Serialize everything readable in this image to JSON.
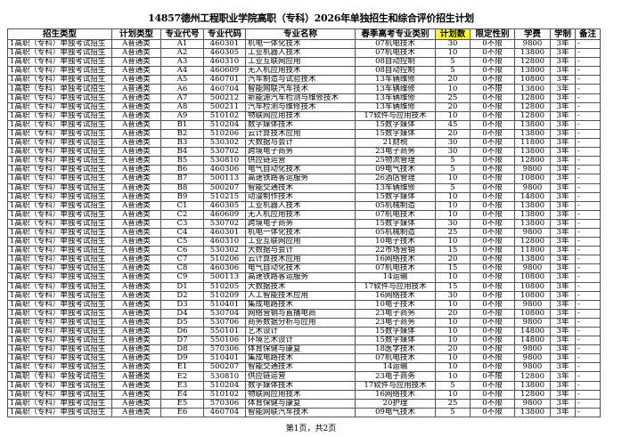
{
  "title": "14857德州工程职业学院高职（专科）2026年单独招生和综合评价招生计划",
  "headers": [
    "招生类型",
    "计划类型",
    "专业代号",
    "专业代码",
    "专业名称",
    "春季高考专业类别",
    "计划数",
    "限定性别",
    "学费",
    "学制",
    "备注"
  ],
  "highlight_color": "#ffff00",
  "rows": [
    [
      "1高职（专科）单独考试招生",
      "A普通类",
      "A1",
      "460301",
      "机电一体化技术",
      "07机电技术",
      "30",
      "0不限",
      "9800",
      "3年",
      "-"
    ],
    [
      "1高职（专科）单独考试招生",
      "A普通类",
      "A2",
      "460305",
      "工业机器人技术",
      "07机电技术",
      "10",
      "0不限",
      "13800",
      "3年",
      "-"
    ],
    [
      "1高职（专科）单独考试招生",
      "A普通类",
      "A3",
      "460310",
      "工业互联网应用",
      "08自动控制",
      "5",
      "0不限",
      "12800",
      "3年",
      "-"
    ],
    [
      "1高职（专科）单独考试招生",
      "A普通类",
      "A4",
      "460609",
      "无人机应用技术",
      "08自动控制",
      "5",
      "0不限",
      "13800",
      "3年",
      "-"
    ],
    [
      "1高职（专科）单独考试招生",
      "A普通类",
      "A5",
      "460701",
      "汽车制造与试验技术",
      "13车辆维修",
      "20",
      "0不限",
      "10800",
      "3年",
      "-"
    ],
    [
      "1高职（专科）单独考试招生",
      "A普通类",
      "A6",
      "460704",
      "智能网联汽车技术",
      "13车辆维修",
      "10",
      "0不限",
      "13800",
      "3年",
      "-"
    ],
    [
      "1高职（专科）单独考试招生",
      "A普通类",
      "A7",
      "500212",
      "新能源汽车检测与维修技术",
      "13车辆维修",
      "25",
      "0不限",
      "12800",
      "3年",
      "-"
    ],
    [
      "1高职（专科）单独考试招生",
      "A普通类",
      "A8",
      "500211",
      "汽车检测与维修技术",
      "13车辆维修",
      "20",
      "0不限",
      "12800",
      "3年",
      "-"
    ],
    [
      "1高职（专科）单独考试招生",
      "A普通类",
      "A9",
      "510102",
      "物联网应用技术",
      "17软件与应用技术",
      "10",
      "0不限",
      "12800",
      "3年",
      "-"
    ],
    [
      "1高职（专科）单独考试招生",
      "A普通类",
      "B1",
      "510204",
      "数字媒体技术",
      "15数字媒体",
      "45",
      "0不限",
      "13800",
      "3年",
      "-"
    ],
    [
      "1高职（专科）单独考试招生",
      "A普通类",
      "B2",
      "510206",
      "云计算技术应用",
      "15数字媒体",
      "20",
      "0不限",
      "13800",
      "3年",
      "-"
    ],
    [
      "1高职（专科）单独考试招生",
      "A普通类",
      "B3",
      "530302",
      "大数据与会计",
      "21财税",
      "30",
      "0不限",
      "11800",
      "3年",
      "-"
    ],
    [
      "1高职（专科）单独考试招生",
      "A普通类",
      "B4",
      "530702",
      "跨境电子商务",
      "23电子商务",
      "30",
      "0不限",
      "13800",
      "3年",
      "-"
    ],
    [
      "1高职（专科）单独考试招生",
      "A普通类",
      "B5",
      "530810",
      "供应链运营",
      "25物流管理",
      "5",
      "0不限",
      "12800",
      "3年",
      "-"
    ],
    [
      "1高职（专科）单独考试招生",
      "A普通类",
      "B6",
      "460306",
      "电气自动化技术",
      "09电气技术",
      "5",
      "0不限",
      "9800",
      "3年",
      "-"
    ],
    [
      "1高职（专科）单独考试招生",
      "A普通类",
      "B7",
      "500113",
      "高速铁路客运服务",
      "26酒店管理",
      "10",
      "0不限",
      "10800",
      "3年",
      "-"
    ],
    [
      "1高职（专科）单独考试招生",
      "A普通类",
      "B8",
      "500207",
      "智能交通技术",
      "13车辆维修",
      "5",
      "0不限",
      "9800",
      "3年",
      "-"
    ],
    [
      "1高职（专科）单独考试招生",
      "A普通类",
      "B9",
      "510215",
      "动漫制作技术",
      "15数字媒体",
      "10",
      "0不限",
      "14800",
      "3年",
      "-"
    ],
    [
      "1高职（专科）单独考试招生",
      "A普通类",
      "C1",
      "460305",
      "工业机器人技术",
      "05机械制造",
      "10",
      "0不限",
      "13800",
      "3年",
      "-"
    ],
    [
      "1高职（专科）单独考试招生",
      "A普通类",
      "C2",
      "460609",
      "无人机应用技术",
      "07机电技术",
      "10",
      "0不限",
      "13800",
      "3年",
      "-"
    ],
    [
      "1高职（专科）单独考试招生",
      "A普通类",
      "C3",
      "530702",
      "跨境电子商务",
      "15数字媒体",
      "30",
      "0不限",
      "13800",
      "3年",
      "-"
    ],
    [
      "1高职（专科）单独考试招生",
      "A普通类",
      "C4",
      "460301",
      "机电一体化技术",
      "05机械制造",
      "25",
      "0不限",
      "9800",
      "3年",
      "-"
    ],
    [
      "1高职（专科）单独考试招生",
      "A普通类",
      "C5",
      "460310",
      "工业互联网应用",
      "10电子技术",
      "10",
      "0不限",
      "12800",
      "3年",
      "-"
    ],
    [
      "1高职（专科）单独考试招生",
      "A普通类",
      "C6",
      "530302",
      "大数据与会计",
      "22市场营销",
      "15",
      "0不限",
      "11800",
      "3年",
      "-"
    ],
    [
      "1高职（专科）单独考试招生",
      "A普通类",
      "C7",
      "510206",
      "云计算技术应用",
      "16网络技术",
      "20",
      "0不限",
      "13800",
      "3年",
      "-"
    ],
    [
      "1高职（专科）单独考试招生",
      "A普通类",
      "C8",
      "460306",
      "电气自动化技术",
      "07机电技术",
      "15",
      "0不限",
      "9800",
      "3年",
      "-"
    ],
    [
      "1高职（专科）单独考试招生",
      "A普通类",
      "C9",
      "500113",
      "高速铁路客运服务",
      "14运输",
      "10",
      "0不限",
      "10800",
      "3年",
      "-"
    ],
    [
      "1高职（专科）单独考试招生",
      "A普通类",
      "D1",
      "510205",
      "大数据技术",
      "17软件与应用技术",
      "15",
      "0不限",
      "10800",
      "3年",
      "-"
    ],
    [
      "1高职（专科）单独考试招生",
      "A普通类",
      "D2",
      "510209",
      "人工智能技术应用",
      "16网络技术",
      "30",
      "0不限",
      "10800",
      "3年",
      "-"
    ],
    [
      "1高职（专科）单独考试招生",
      "A普通类",
      "D3",
      "510401",
      "集成电路技术",
      "10电子技术",
      "10",
      "0不限",
      "9800",
      "3年",
      "-"
    ],
    [
      "1高职（专科）单独考试招生",
      "A普通类",
      "D4",
      "530704",
      "网络营销与直播电商",
      "23电子商务",
      "20",
      "0不限",
      "10800",
      "3年",
      "-"
    ],
    [
      "1高职（专科）单独考试招生",
      "A普通类",
      "D5",
      "530706",
      "商务数据分析与应用",
      "23电子商务",
      "10",
      "0不限",
      "9800",
      "3年",
      "-"
    ],
    [
      "1高职（专科）单独考试招生",
      "A普通类",
      "D6",
      "550101",
      "艺术设计",
      "15数字媒体",
      "10",
      "0不限",
      "14800",
      "3年",
      "-"
    ],
    [
      "1高职（专科）单独考试招生",
      "A普通类",
      "D7",
      "550106",
      "环境艺术设计",
      "15数字媒体",
      "10",
      "0不限",
      "14800",
      "3年",
      "-"
    ],
    [
      "1高职（专科）单独考试招生",
      "A普通类",
      "D8",
      "570306",
      "体育保健与康复",
      "18医学技术",
      "20",
      "0不限",
      "9800",
      "3年",
      "-"
    ],
    [
      "1高职（专科）单独考试招生",
      "A普通类",
      "D9",
      "510401",
      "集成电路技术",
      "07机电技术",
      "10",
      "0不限",
      "9800",
      "3年",
      "-"
    ],
    [
      "1高职（专科）单独考试招生",
      "A普通类",
      "E1",
      "500207",
      "智能交通技术",
      "14运输",
      "10",
      "0不限",
      "9800",
      "3年",
      "-"
    ],
    [
      "1高职（专科）单独考试招生",
      "A普通类",
      "E2",
      "530810",
      "供应链运营",
      "23电子商务",
      "10",
      "0不限",
      "12800",
      "3年",
      "-"
    ],
    [
      "1高职（专科）单独考试招生",
      "A普通类",
      "E3",
      "510204",
      "数字媒体技术",
      "17软件与应用技术",
      "5",
      "0不限",
      "13800",
      "3年",
      "-"
    ],
    [
      "1高职（专科）单独考试招生",
      "A普通类",
      "E4",
      "510102",
      "物联网应用技术",
      "16网络技术",
      "10",
      "0不限",
      "12800",
      "3年",
      "-"
    ],
    [
      "1高职（专科）单独考试招生",
      "A普通类",
      "E5",
      "570306",
      "体育保健与康复",
      "20护理",
      "25",
      "0不限",
      "9800",
      "3年",
      "-"
    ],
    [
      "1高职（专科）单独考试招生",
      "A普通类",
      "E6",
      "460704",
      "智能网联汽车技术",
      "09电气技术",
      "5",
      "0不限",
      "13800",
      "3年",
      "-"
    ]
  ],
  "footer": "第1页，共2页"
}
